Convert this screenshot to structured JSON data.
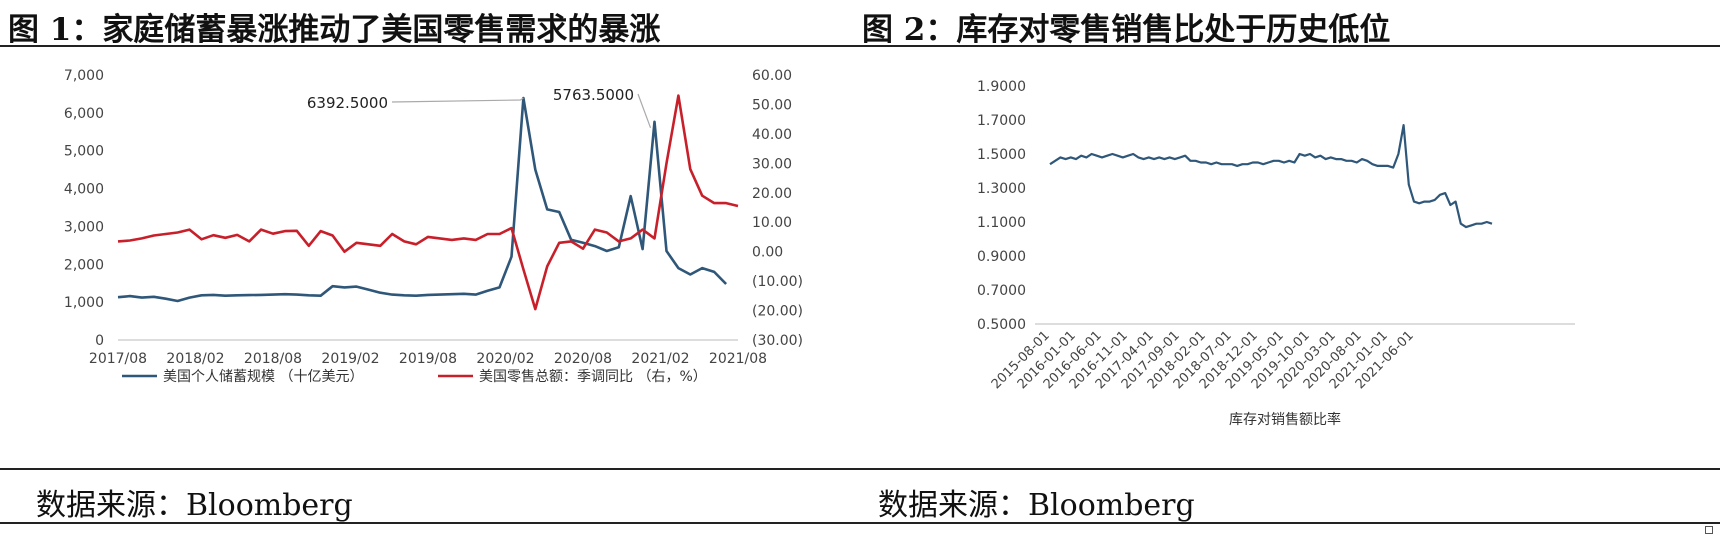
{
  "panels": {
    "left_title": "图 1：家庭储蓄暴涨推动了美国零售需求的暴涨",
    "right_title": "图 2：库存对零售销售比处于历史低位",
    "left_source": "数据来源：Bloomberg",
    "right_source": "数据来源：Bloomberg"
  },
  "colors": {
    "blue": "#2f5779",
    "red": "#c8202a",
    "axis": "#bbbbbb"
  },
  "chart_data": [
    {
      "type": "line",
      "title": "图 1：家庭储蓄暴涨推动了美国零售需求的暴涨",
      "x_tick_labels": [
        "2017/08",
        "2018/02",
        "2018/08",
        "2019/02",
        "2019/08",
        "2020/02",
        "2020/08",
        "2021/02",
        "2021/08"
      ],
      "x_start": "2017/08",
      "y_left_ticks": [
        "7,000",
        "6,000",
        "5,000",
        "4,000",
        "3,000",
        "2,000",
        "1,000",
        "0"
      ],
      "y_left_range": [
        0,
        7000
      ],
      "y_right_ticks": [
        "60.00",
        "50.00",
        "40.00",
        "30.00",
        "20.00",
        "10.00",
        "0.00",
        "(10.00)",
        "(20.00)",
        "(30.00)"
      ],
      "y_right_range": [
        -30,
        60
      ],
      "series": [
        {
          "name": "美国个人储蓄规模 （十亿美元）",
          "axis": "left",
          "values": [
            1130,
            1160,
            1120,
            1140,
            1090,
            1030,
            1120,
            1180,
            1190,
            1170,
            1180,
            1185,
            1190,
            1200,
            1210,
            1200,
            1180,
            1170,
            1420,
            1390,
            1410,
            1330,
            1250,
            1200,
            1180,
            1170,
            1190,
            1200,
            1210,
            1220,
            1200,
            1300,
            1390,
            2200,
            6392.5,
            4500,
            3450,
            3380,
            2650,
            2570,
            2480,
            2350,
            2450,
            3800,
            2400,
            5763.5,
            2350,
            1900,
            1730,
            1900,
            1800,
            1480
          ]
        },
        {
          "name": "美国零售总额：季调同比 （右，%）",
          "axis": "right",
          "values": [
            3.5,
            3.8,
            4.5,
            5.5,
            6.0,
            6.5,
            7.5,
            4.2,
            5.6,
            4.7,
            5.7,
            3.5,
            7.5,
            6.1,
            7.0,
            7.1,
            2.0,
            7.0,
            5.5,
            0.0,
            3.0,
            2.5,
            2.0,
            6.0,
            3.5,
            2.5,
            5.0,
            4.5,
            4.0,
            4.5,
            4.0,
            6.0,
            6.0,
            8.0,
            -6.0,
            -19.5,
            -5.0,
            3.0,
            3.5,
            1.0,
            7.5,
            6.5,
            3.5,
            4.5,
            7.5,
            4.5,
            30.0,
            53.0,
            28.0,
            19.0,
            16.5,
            16.5,
            15.5
          ]
        }
      ],
      "annotations": [
        {
          "text": "6392.5000",
          "series": 0,
          "index": 34
        },
        {
          "text": "5763.5000",
          "series": 0,
          "index": 45
        }
      ],
      "legend_position": "bottom",
      "grid": false
    },
    {
      "type": "line",
      "title": "图 2：库存对零售销售比处于历史低位",
      "x_tick_labels": [
        "2015-08-01",
        "2016-01-01",
        "2016-06-01",
        "2016-11-01",
        "2017-04-01",
        "2017-09-01",
        "2018-02-01",
        "2018-07-01",
        "2018-12-01",
        "2019-05-01",
        "2019-10-01",
        "2020-03-01",
        "2020-08-01",
        "2021-01-01",
        "2021-06-01"
      ],
      "x_start": "2015-08",
      "y_ticks": [
        "1.9000",
        "1.7000",
        "1.5000",
        "1.3000",
        "1.1000",
        "0.9000",
        "0.7000",
        "0.5000"
      ],
      "y_range": [
        0.5,
        1.9
      ],
      "xlabel": "库存对销售额比率",
      "series": [
        {
          "name": "库存对销售额比率",
          "values": [
            1.44,
            1.46,
            1.48,
            1.47,
            1.48,
            1.47,
            1.49,
            1.48,
            1.5,
            1.49,
            1.48,
            1.49,
            1.5,
            1.49,
            1.48,
            1.49,
            1.5,
            1.48,
            1.47,
            1.48,
            1.47,
            1.48,
            1.47,
            1.48,
            1.47,
            1.48,
            1.49,
            1.46,
            1.46,
            1.45,
            1.45,
            1.44,
            1.45,
            1.44,
            1.44,
            1.44,
            1.43,
            1.44,
            1.44,
            1.45,
            1.45,
            1.44,
            1.45,
            1.46,
            1.46,
            1.45,
            1.46,
            1.45,
            1.5,
            1.49,
            1.5,
            1.48,
            1.49,
            1.47,
            1.48,
            1.47,
            1.47,
            1.46,
            1.46,
            1.45,
            1.47,
            1.46,
            1.44,
            1.43,
            1.43,
            1.43,
            1.42,
            1.5,
            1.67,
            1.32,
            1.22,
            1.21,
            1.22,
            1.22,
            1.23,
            1.26,
            1.27,
            1.2,
            1.22,
            1.09,
            1.07,
            1.08,
            1.09,
            1.09,
            1.1,
            1.09
          ]
        }
      ],
      "grid": false
    }
  ]
}
